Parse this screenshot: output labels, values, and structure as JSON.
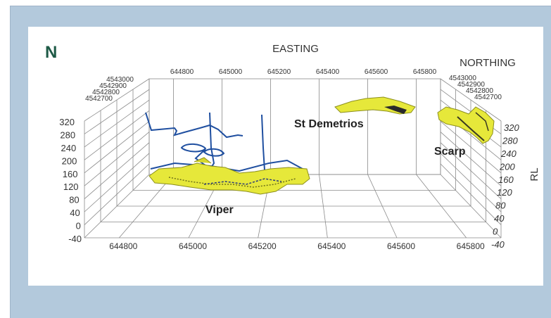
{
  "compass": "N",
  "axes": {
    "easting_title": "EASTING",
    "northing_title": "NORTHING",
    "rl_title": "RL",
    "easting_ticks": [
      "644800",
      "645000",
      "645200",
      "645400",
      "645600",
      "645800"
    ],
    "northing_ticks": [
      "4543000",
      "4542900",
      "4542800",
      "4542700"
    ],
    "rl_ticks": [
      "320",
      "280",
      "240",
      "200",
      "160",
      "120",
      "80",
      "40",
      "0",
      "-40"
    ]
  },
  "deposits": [
    {
      "name": "Viper"
    },
    {
      "name": "St Demetrios"
    },
    {
      "name": "Scarp"
    }
  ],
  "colors": {
    "frame": "#b3c9dc",
    "orebody": "#e6e83a",
    "orebody_edge": "#8c8f1c",
    "drillhole": "#1f4fa0",
    "compass": "#1e5a46"
  }
}
